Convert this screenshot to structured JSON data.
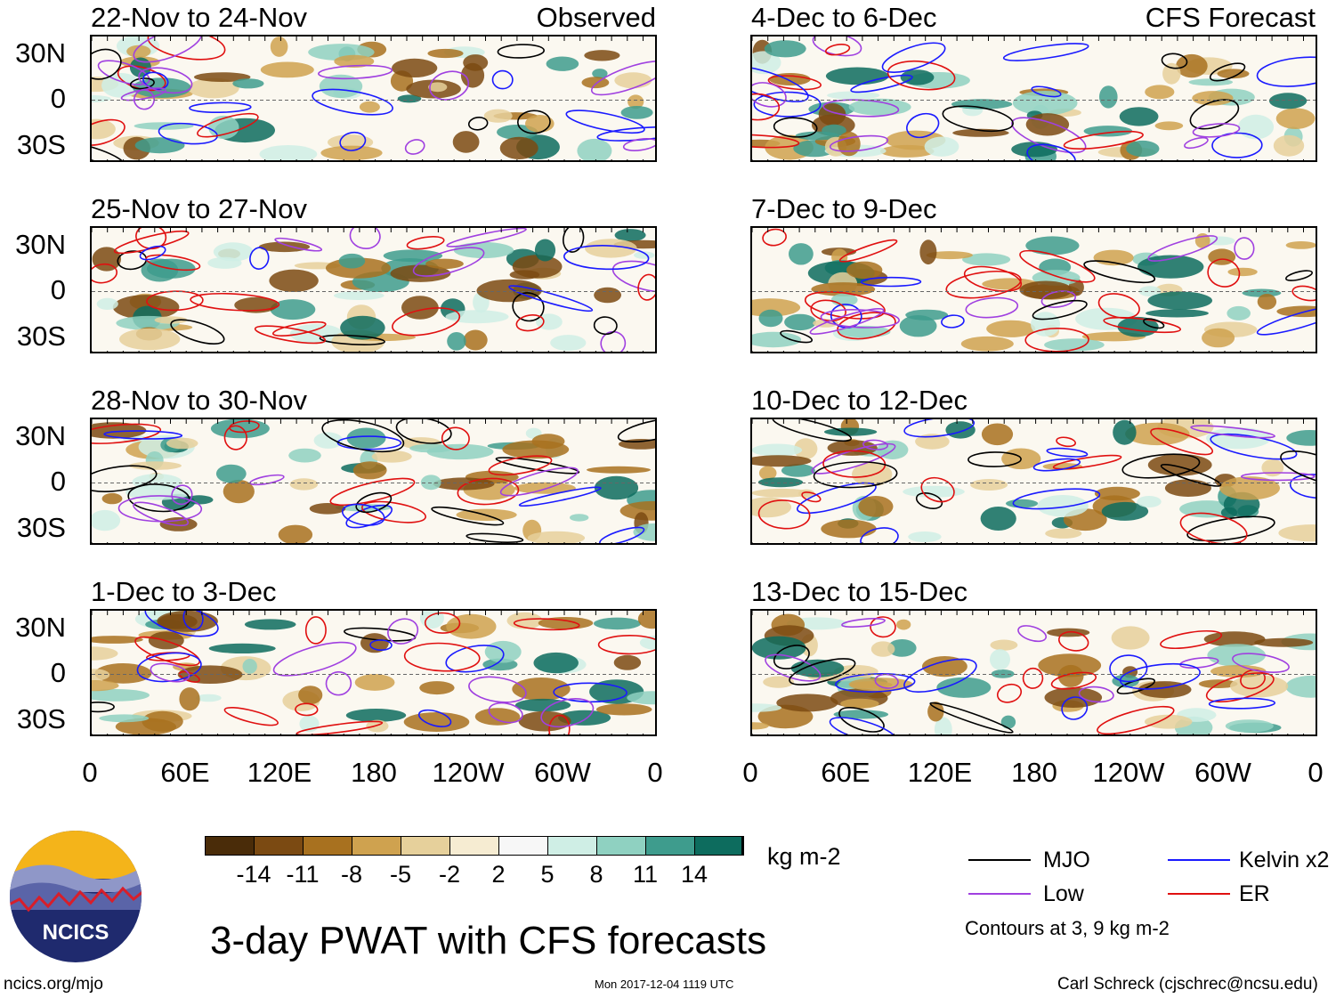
{
  "header": {
    "observed_label": "Observed",
    "forecast_label": "CFS Forecast"
  },
  "panels": [
    {
      "title": "22-Nov to 24-Nov"
    },
    {
      "title": "25-Nov to 27-Nov"
    },
    {
      "title": "28-Nov to 30-Nov"
    },
    {
      "title": "1-Dec to 3-Dec"
    },
    {
      "title": "4-Dec to 6-Dec"
    },
    {
      "title": "7-Dec to 9-Dec"
    },
    {
      "title": "10-Dec to 12-Dec"
    },
    {
      "title": "13-Dec to 15-Dec"
    }
  ],
  "lat_labels": [
    "30N",
    "0",
    "30S"
  ],
  "lon_labels": [
    "0",
    "60E",
    "120E",
    "180",
    "120W",
    "60W",
    "0"
  ],
  "colorbar": {
    "colors": [
      "#4a2c09",
      "#7b4a12",
      "#a8711f",
      "#cfa24f",
      "#e6d09b",
      "#f6ecd2",
      "#f7f7f7",
      "#cfeee5",
      "#8fd1c1",
      "#3e9c8d",
      "#0d6c5e",
      "#033c30"
    ],
    "labels": [
      "-14",
      "-11",
      "-8",
      "-5",
      "-2",
      "2",
      "5",
      "8",
      "11",
      "14"
    ],
    "units": "kg m-2"
  },
  "legend": {
    "items": [
      {
        "label": "MJO",
        "color": "#000000"
      },
      {
        "label": "Kelvin x2",
        "color": "#1a1aff"
      },
      {
        "label": "Low",
        "color": "#a040e0"
      },
      {
        "label": "ER",
        "color": "#e01010"
      }
    ],
    "contours_note": "Contours at 3, 9 kg m-2"
  },
  "title": "3-day PWAT with CFS forecasts",
  "footer": {
    "url": "ncics.org/mjo",
    "timestamp": "Mon 2017-12-04 1119 UTC",
    "credit": "Carl Schreck (cjschrec@ncsu.edu)"
  },
  "logo": {
    "text": "NCICS"
  }
}
